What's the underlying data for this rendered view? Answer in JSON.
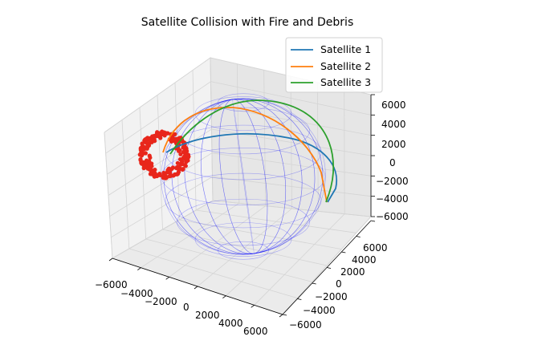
{
  "chart_data": {
    "type": "line3d",
    "title": "Satellite Collision with Fire and Debris",
    "xlabel": "",
    "ylabel": "",
    "zlabel": "",
    "xlim": [
      -6000,
      6000
    ],
    "ylim": [
      -6000,
      6000
    ],
    "zlim": [
      -6000,
      6000
    ],
    "x_ticks": [
      "−6000",
      "−4000",
      "−2000",
      "0",
      "2000",
      "4000",
      "6000"
    ],
    "y_ticks": [
      "−6000",
      "−4000",
      "−2000",
      "0",
      "2000",
      "4000",
      "6000"
    ],
    "z_ticks": [
      "6000",
      "4000",
      "2000",
      "0",
      "−2000",
      "−4000",
      "−6000"
    ],
    "grid": true,
    "legend_position": "top-right",
    "series": [
      {
        "name": "Satellite 1",
        "color": "#1f77b4"
      },
      {
        "name": "Satellite 2",
        "color": "#ff7f0e"
      },
      {
        "name": "Satellite 3",
        "color": "#2ca02c"
      }
    ],
    "earth_wireframe_color": "#0000ff",
    "debris_color": "#e8261b"
  }
}
